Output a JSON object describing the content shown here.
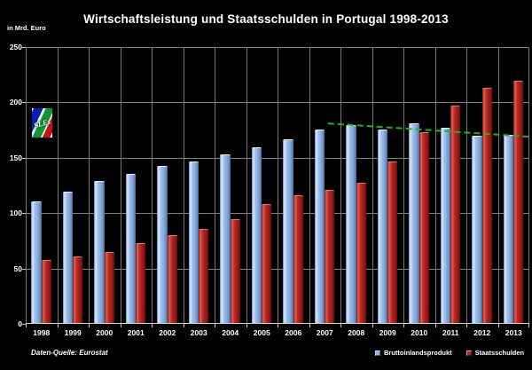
{
  "header": {
    "title": "Wirtschaftsleistung und Staatsschulden in Portugal 1998-2013",
    "unit_label": "in Mrd. Euro"
  },
  "logo": {
    "text": "SLEs"
  },
  "footer": {
    "source": "Daten-Quelle: Eurostat"
  },
  "colors": {
    "background": "#000000",
    "text": "#ffffff",
    "gridline": "#828282",
    "axis": "#d4d4d4",
    "gdp_bar": "#8fb3e3",
    "debt_bar": "#b22622",
    "trendline": "#1eb41e"
  },
  "chart_data": {
    "type": "bar",
    "title": "Wirtschaftsleistung und Staatsschulden in Portugal 1998-2013",
    "ylabel": "in Mrd. Euro",
    "xlabel": "",
    "ylim": [
      0,
      250
    ],
    "yticks": [
      0,
      50,
      100,
      150,
      200,
      250
    ],
    "grid": true,
    "legend_position": "bottom-right",
    "categories": [
      "1998",
      "1999",
      "2000",
      "2001",
      "2002",
      "2003",
      "2004",
      "2005",
      "2006",
      "2007",
      "2008",
      "2009",
      "2010",
      "2011",
      "2012",
      "2013"
    ],
    "series": [
      {
        "name": "Bruttoinlandsprodukt",
        "color": "#8fb3e3",
        "values": [
          110,
          119,
          128,
          135,
          142,
          146,
          152,
          159,
          166,
          175,
          179,
          175,
          180,
          176,
          169,
          170
        ]
      },
      {
        "name": "Staatsschulden",
        "color": "#b22622",
        "values": [
          57,
          60,
          64,
          72,
          79,
          85,
          94,
          107,
          115,
          120,
          127,
          146,
          172,
          196,
          212,
          219
        ]
      }
    ],
    "trendline": {
      "description": "dashed green line marking GDP stagnation from 2008 to 2013",
      "color": "#1eb41e",
      "points": [
        {
          "year": 2007.6,
          "value": 181
        },
        {
          "year": 2014,
          "value": 169
        }
      ]
    }
  }
}
